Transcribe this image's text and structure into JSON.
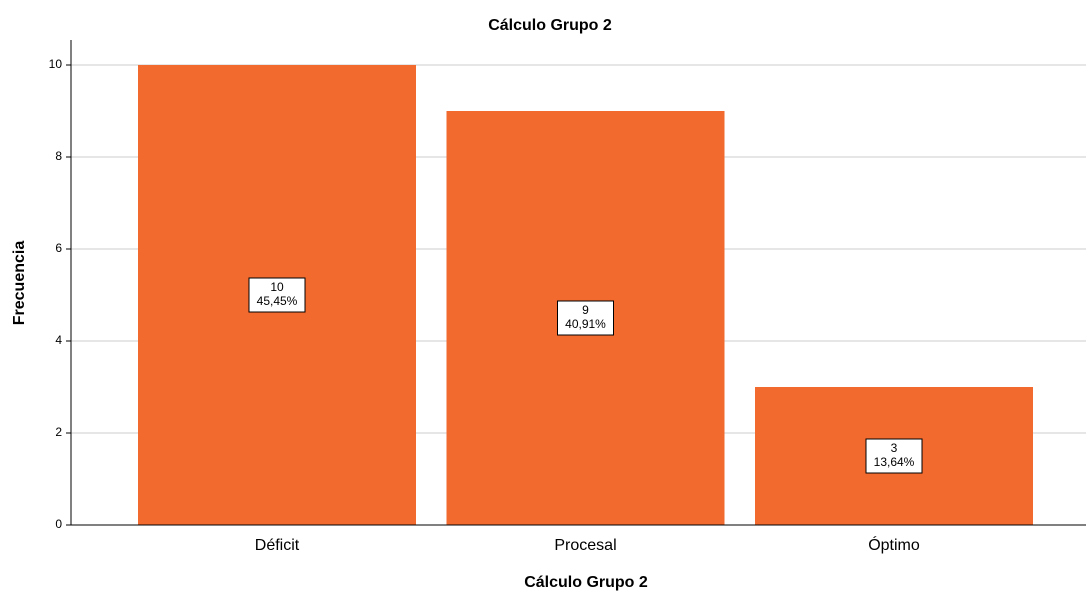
{
  "chart_data": {
    "type": "bar",
    "title": "Cálculo Grupo 2",
    "x_label": "Cálculo Grupo 2",
    "y_label": "Frecuencia",
    "categories": [
      "Déficit",
      "Procesal",
      "Óptimo"
    ],
    "values": [
      10,
      9,
      3
    ],
    "percent_values": [
      45.45,
      40.91,
      13.64
    ],
    "percent_labels": [
      "45,45%",
      "40,91%",
      "13,64%"
    ],
    "color": "#f26a2e",
    "ylim": [
      0,
      10.5
    ],
    "yticks": [
      0,
      2,
      4,
      6,
      8,
      10
    ],
    "grid": true
  }
}
